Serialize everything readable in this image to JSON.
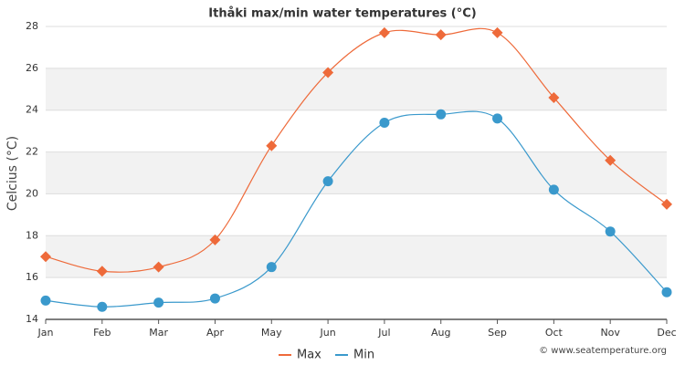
{
  "chart_data": {
    "type": "line",
    "title": "Ithåki max/min water temperatures (°C)",
    "y_label": "Celcius (°C)",
    "source": "© www.seatemperature.org",
    "categories": [
      "Jan",
      "Feb",
      "Mar",
      "Apr",
      "May",
      "Jun",
      "Jul",
      "Aug",
      "Sep",
      "Oct",
      "Nov",
      "Dec"
    ],
    "series": [
      {
        "name": "Max",
        "color": "#ee6a3a",
        "marker": "diamond",
        "values": [
          17.0,
          16.3,
          16.5,
          17.8,
          22.3,
          25.8,
          27.7,
          27.6,
          27.7,
          24.6,
          21.6,
          19.5
        ]
      },
      {
        "name": "Min",
        "color": "#3a99cc",
        "marker": "circle",
        "values": [
          14.9,
          14.6,
          14.8,
          15.0,
          16.5,
          20.6,
          23.4,
          23.8,
          23.6,
          20.2,
          18.2,
          15.3
        ]
      }
    ],
    "ylim": [
      14,
      28
    ],
    "yticks": [
      14,
      16,
      18,
      20,
      22,
      24,
      26,
      28
    ],
    "grid": true
  }
}
